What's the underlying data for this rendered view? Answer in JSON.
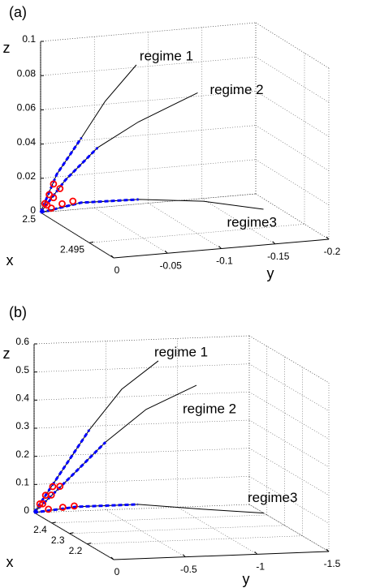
{
  "chart_data": [
    {
      "type": "line3d",
      "title": "(a)",
      "xlabel": "x",
      "ylabel": "y",
      "zlabel": "z",
      "xlim": [
        2.4925,
        2.5
      ],
      "ylim": [
        -0.2,
        0
      ],
      "zlim": [
        0,
        0.1
      ],
      "xticks": [
        2.5,
        2.495
      ],
      "yticks": [
        0,
        -0.05,
        -0.1,
        -0.15,
        -0.2
      ],
      "zticks": [
        0,
        0.02,
        0.04,
        0.06,
        0.08,
        0.1
      ],
      "grid": true,
      "annotations": [
        "regime 1",
        "regime 2",
        "regime3"
      ],
      "series": [
        {
          "color": "#000000",
          "style": "solid",
          "x": [
            2.5,
            2.5,
            2.5,
            2.5,
            2.5
          ],
          "y": [
            0,
            -0.015,
            -0.038,
            -0.06,
            -0.089
          ],
          "z": [
            0,
            0.0215,
            0.0416,
            0.0617,
            0.0814
          ]
        },
        {
          "color": "#000000",
          "style": "solid",
          "x": [
            2.5,
            2.5,
            2.5,
            2.5,
            2.5
          ],
          "y": [
            0,
            -0.023,
            -0.053,
            -0.091,
            -0.146
          ],
          "z": [
            0,
            0.0177,
            0.035,
            0.048,
            0.062
          ]
        },
        {
          "color": "#000000",
          "style": "solid",
          "x": [
            2.5,
            2.4995,
            2.499,
            2.498,
            2.497
          ],
          "y": [
            0,
            -0.033,
            -0.082,
            -0.133,
            -0.18
          ],
          "z": [
            0,
            0.0057,
            0.0067,
            0.0064,
            0.0027
          ]
        },
        {
          "color": "#0000ff",
          "style": "dashed",
          "x": [
            2.5,
            2.5,
            2.5
          ],
          "y": [
            0,
            -0.015,
            -0.038
          ],
          "z": [
            0,
            0.0215,
            0.0416
          ]
        },
        {
          "color": "#0000ff",
          "style": "dashed",
          "x": [
            2.5,
            2.5,
            2.5
          ],
          "y": [
            0,
            -0.023,
            -0.053
          ],
          "z": [
            0,
            0.0177,
            0.035
          ]
        },
        {
          "color": "#0000ff",
          "style": "dashed",
          "x": [
            2.5,
            2.4995,
            2.499
          ],
          "y": [
            0,
            -0.033,
            -0.082
          ],
          "z": [
            0,
            0.0057,
            0.0067
          ]
        },
        {
          "color": "#ff0000",
          "style": "marker",
          "x": [
            2.5,
            2.5,
            2.5
          ],
          "y": [
            -0.004,
            -0.008,
            -0.012
          ],
          "z": [
            0.005,
            0.01,
            0.016
          ]
        },
        {
          "color": "#ff0000",
          "style": "marker",
          "x": [
            2.5,
            2.5,
            2.5
          ],
          "y": [
            -0.006,
            -0.012,
            -0.018
          ],
          "z": [
            0.004,
            0.008,
            0.013
          ]
        },
        {
          "color": "#ff0000",
          "style": "marker",
          "x": [
            2.5,
            2.5,
            2.5
          ],
          "y": [
            -0.01,
            -0.02,
            -0.03
          ],
          "z": [
            0.002,
            0.004,
            0.005
          ]
        }
      ]
    },
    {
      "type": "line3d",
      "title": "(b)",
      "xlabel": "x",
      "ylabel": "y",
      "zlabel": "z",
      "xlim": [
        2.05,
        2.5
      ],
      "ylim": [
        -1.5,
        0
      ],
      "zlim": [
        0,
        0.6
      ],
      "xticks": [
        2.4,
        2.3,
        2.2
      ],
      "yticks": [
        0,
        -0.5,
        -1,
        -1.5
      ],
      "zticks": [
        0,
        0.1,
        0.2,
        0.3,
        0.4,
        0.5,
        0.6
      ],
      "grid": true,
      "annotations": [
        "regime 1",
        "regime 2",
        "regime3"
      ],
      "series": [
        {
          "color": "#000000",
          "style": "solid",
          "x": [
            2.5,
            2.5,
            2.5,
            2.5,
            2.5
          ],
          "y": [
            0,
            -0.158,
            -0.385,
            -0.611,
            -0.866
          ],
          "z": [
            0,
            0.118,
            0.287,
            0.427,
            0.523
          ]
        },
        {
          "color": "#000000",
          "style": "solid",
          "x": [
            2.5,
            2.5,
            2.5,
            2.5,
            2.5
          ],
          "y": [
            0,
            -0.215,
            -0.498,
            -0.781,
            -1.132
          ],
          "z": [
            0,
            0.103,
            0.241,
            0.352,
            0.431
          ]
        },
        {
          "color": "#000000",
          "style": "solid",
          "x": [
            2.5,
            2.49,
            2.47,
            2.44,
            2.41
          ],
          "y": [
            0,
            -0.288,
            -0.687,
            -1.104,
            -1.491
          ],
          "z": [
            0,
            0.019,
            0.027,
            0.013,
            0.003
          ]
        },
        {
          "color": "#0000ff",
          "style": "dashed",
          "x": [
            2.5,
            2.5,
            2.5
          ],
          "y": [
            0,
            -0.158,
            -0.385
          ],
          "z": [
            0,
            0.118,
            0.287
          ]
        },
        {
          "color": "#0000ff",
          "style": "dashed",
          "x": [
            2.5,
            2.5,
            2.5
          ],
          "y": [
            0,
            -0.215,
            -0.498
          ],
          "z": [
            0,
            0.103,
            0.241
          ]
        },
        {
          "color": "#0000ff",
          "style": "dashed",
          "x": [
            2.5,
            2.49,
            2.47
          ],
          "y": [
            0,
            -0.288,
            -0.687
          ],
          "z": [
            0,
            0.019,
            0.027
          ]
        },
        {
          "color": "#ff0000",
          "style": "marker",
          "x": [
            2.5,
            2.5,
            2.5
          ],
          "y": [
            -0.04,
            -0.08,
            -0.13
          ],
          "z": [
            0.03,
            0.06,
            0.09
          ]
        },
        {
          "color": "#ff0000",
          "style": "marker",
          "x": [
            2.5,
            2.5,
            2.5
          ],
          "y": [
            -0.06,
            -0.12,
            -0.18
          ],
          "z": [
            0.03,
            0.06,
            0.09
          ]
        },
        {
          "color": "#ff0000",
          "style": "marker",
          "x": [
            2.5,
            2.5,
            2.5
          ],
          "y": [
            -0.1,
            -0.2,
            -0.28
          ],
          "z": [
            0.01,
            0.015,
            0.018
          ]
        }
      ]
    }
  ]
}
